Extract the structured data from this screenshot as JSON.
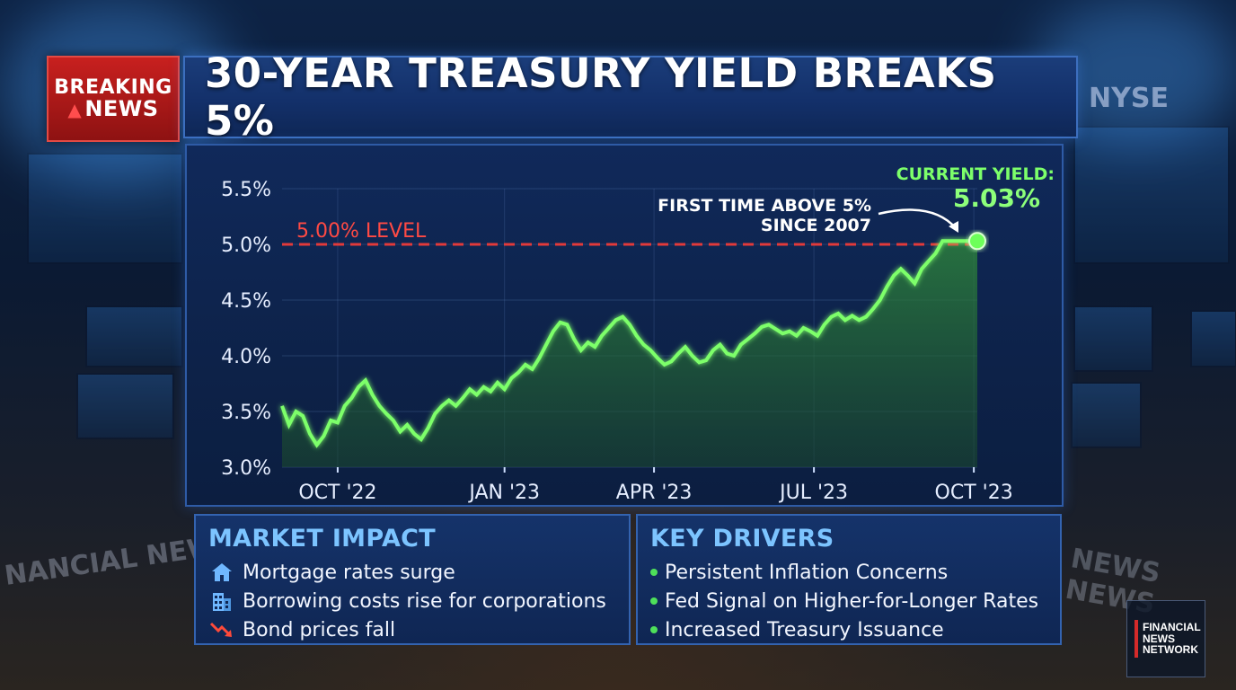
{
  "badge": {
    "line1": "BREAKING",
    "line2": "NEWS"
  },
  "headline": "30-YEAR TREASURY YIELD BREAKS 5%",
  "chart_data": {
    "type": "line",
    "title": "",
    "xlabel": "",
    "ylabel": "",
    "ylim": [
      3.0,
      5.5
    ],
    "y_ticks": [
      "5.5%",
      "5.0%",
      "4.5%",
      "4.0%",
      "3.5%",
      "3.0%"
    ],
    "y_tick_values": [
      5.5,
      5.0,
      4.5,
      4.0,
      3.5,
      3.0
    ],
    "x_ticks": [
      "OCT '22",
      "JAN '23",
      "APR '23",
      "JUL '23",
      "OCT '23"
    ],
    "x_tick_positions": [
      0.08,
      0.32,
      0.535,
      0.765,
      0.995
    ],
    "x": [
      0,
      0.01,
      0.02,
      0.03,
      0.04,
      0.05,
      0.06,
      0.07,
      0.08,
      0.09,
      0.1,
      0.11,
      0.12,
      0.13,
      0.14,
      0.15,
      0.16,
      0.17,
      0.18,
      0.19,
      0.2,
      0.21,
      0.22,
      0.23,
      0.24,
      0.25,
      0.26,
      0.27,
      0.28,
      0.29,
      0.3,
      0.31,
      0.32,
      0.33,
      0.34,
      0.35,
      0.36,
      0.37,
      0.38,
      0.39,
      0.4,
      0.41,
      0.42,
      0.43,
      0.44,
      0.45,
      0.46,
      0.47,
      0.48,
      0.49,
      0.5,
      0.51,
      0.52,
      0.53,
      0.54,
      0.55,
      0.56,
      0.57,
      0.58,
      0.59,
      0.6,
      0.61,
      0.62,
      0.63,
      0.64,
      0.65,
      0.66,
      0.67,
      0.68,
      0.69,
      0.7,
      0.71,
      0.72,
      0.73,
      0.74,
      0.75,
      0.76,
      0.77,
      0.78,
      0.79,
      0.8,
      0.81,
      0.82,
      0.83,
      0.84,
      0.85,
      0.86,
      0.87,
      0.88,
      0.89,
      0.9,
      0.91,
      0.92,
      0.93,
      0.94,
      0.95,
      0.96,
      0.97,
      0.98,
      0.99,
      1.0
    ],
    "series": [
      {
        "values": [
          3.55,
          3.38,
          3.5,
          3.46,
          3.3,
          3.2,
          3.28,
          3.42,
          3.4,
          3.55,
          3.62,
          3.72,
          3.78,
          3.65,
          3.55,
          3.48,
          3.42,
          3.32,
          3.38,
          3.3,
          3.25,
          3.35,
          3.48,
          3.55,
          3.6,
          3.55,
          3.62,
          3.7,
          3.65,
          3.72,
          3.68,
          3.76,
          3.7,
          3.8,
          3.85,
          3.92,
          3.88,
          3.98,
          4.1,
          4.22,
          4.3,
          4.28,
          4.15,
          4.05,
          4.12,
          4.08,
          4.18,
          4.25,
          4.32,
          4.35,
          4.28,
          4.18,
          4.1,
          4.05,
          3.98,
          3.92,
          3.95,
          4.02,
          4.08,
          4.0,
          3.94,
          3.96,
          4.05,
          4.1,
          4.02,
          4.0,
          4.1,
          4.15,
          4.2,
          4.26,
          4.28,
          4.24,
          4.2,
          4.22,
          4.18,
          4.25,
          4.22,
          4.18,
          4.28,
          4.35,
          4.38,
          4.32,
          4.36,
          4.32,
          4.35,
          4.42,
          4.5,
          4.62,
          4.72,
          4.78,
          4.72,
          4.65,
          4.78,
          4.85,
          4.92,
          5.03,
          5.03,
          5.03,
          5.03,
          5.03,
          5.03
        ]
      }
    ],
    "reference_line": {
      "value": 5.0,
      "label": "5.00% LEVEL",
      "color": "#e23a3a"
    },
    "annotation": {
      "text_line1": "FIRST TIME ABOVE 5%",
      "text_line2": "SINCE 2007"
    },
    "current": {
      "label": "CURRENT YIELD:",
      "value": "5.03%",
      "y": 5.03
    },
    "line_color": "#7dff6a",
    "fill_color": "#2f8a3a"
  },
  "market_impact": {
    "title": "MARKET IMPACT",
    "items": [
      {
        "icon": "house-icon",
        "text": "Mortgage rates surge"
      },
      {
        "icon": "building-icon",
        "text": "Borrowing costs rise for corporations"
      },
      {
        "icon": "trend-down-icon",
        "text": "Bond prices fall"
      }
    ]
  },
  "key_drivers": {
    "title": "KEY DRIVERS",
    "items": [
      {
        "text": "Persistent Inflation Concerns"
      },
      {
        "text": "Fed Signal on Higher-for-Longer Rates"
      },
      {
        "text": "Increased Treasury Issuance"
      }
    ]
  },
  "logo": {
    "line1": "FINANCIAL",
    "line2": "NEWS",
    "line3": "NETWORK"
  },
  "background_text": {
    "left": "NANCIAL NEWS",
    "right": "NEWS NEWS",
    "nyse": "NYSE"
  }
}
